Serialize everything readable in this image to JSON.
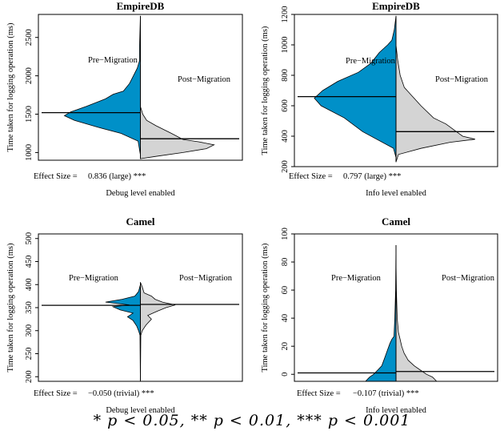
{
  "colors": {
    "pre": "#0090c8",
    "post": "#d4d4d4",
    "outline": "#000000"
  },
  "footnote": "* p < 0.05, ** p < 0.01, *** p < 0.001",
  "chart_data": [
    {
      "type": "bean",
      "title": "EmpireDB",
      "ylabel": "Time taken for logging operation (ms)",
      "xlabel": "Debug level enabled",
      "effect_label": "Effect Size =",
      "effect_value": "0.836 (large) ***",
      "series": [
        {
          "name": "Pre−Migration",
          "median": 1520,
          "density": [
            [
              970,
              0
            ],
            [
              1150,
              0.03
            ],
            [
              1250,
              0.25
            ],
            [
              1330,
              0.55
            ],
            [
              1420,
              0.85
            ],
            [
              1480,
              0.98
            ],
            [
              1530,
              0.9
            ],
            [
              1600,
              0.7
            ],
            [
              1700,
              0.45
            ],
            [
              1760,
              0.35
            ],
            [
              1800,
              0.22
            ],
            [
              1900,
              0.14
            ],
            [
              2000,
              0.09
            ],
            [
              2100,
              0.04
            ],
            [
              2200,
              0.01
            ],
            [
              2400,
              0.01
            ],
            [
              2780,
              0
            ]
          ]
        },
        {
          "name": "Post−Migration",
          "median": 1180,
          "density": [
            [
              920,
              0
            ],
            [
              950,
              0.2
            ],
            [
              1000,
              0.55
            ],
            [
              1050,
              0.85
            ],
            [
              1100,
              0.95
            ],
            [
              1140,
              0.75
            ],
            [
              1170,
              0.55
            ],
            [
              1250,
              0.4
            ],
            [
              1350,
              0.2
            ],
            [
              1420,
              0.08
            ],
            [
              1500,
              0.03
            ],
            [
              1600,
              0
            ]
          ]
        }
      ],
      "ylim": [
        900,
        2800
      ],
      "yticks": [
        1000,
        1500,
        2000,
        2500
      ]
    },
    {
      "type": "bean",
      "title": "EmpireDB",
      "ylabel": "Time taken for logging operation (ms)",
      "xlabel": "Info level enabled",
      "effect_label": "Effect Size =",
      "effect_value": "0.797 (large) ***",
      "series": [
        {
          "name": "Pre−Migration",
          "median": 660,
          "density": [
            [
              260,
              0
            ],
            [
              320,
              0.03
            ],
            [
              430,
              0.4
            ],
            [
              520,
              0.62
            ],
            [
              600,
              0.9
            ],
            [
              650,
              0.98
            ],
            [
              700,
              0.88
            ],
            [
              760,
              0.7
            ],
            [
              820,
              0.45
            ],
            [
              880,
              0.3
            ],
            [
              950,
              0.2
            ],
            [
              1000,
              0.1
            ],
            [
              1030,
              0.05
            ],
            [
              1100,
              0.02
            ],
            [
              1190,
              0
            ]
          ]
        },
        {
          "name": "Post−Migration",
          "median": 430,
          "density": [
            [
              230,
              0
            ],
            [
              280,
              0.03
            ],
            [
              320,
              0.3
            ],
            [
              360,
              0.65
            ],
            [
              380,
              0.95
            ],
            [
              400,
              0.8
            ],
            [
              440,
              0.7
            ],
            [
              480,
              0.6
            ],
            [
              520,
              0.45
            ],
            [
              600,
              0.3
            ],
            [
              660,
              0.2
            ],
            [
              720,
              0.1
            ],
            [
              800,
              0.05
            ],
            [
              900,
              0.02
            ],
            [
              1000,
              0
            ]
          ]
        }
      ],
      "ylim": [
        200,
        1200
      ],
      "yticks": [
        200,
        400,
        600,
        800,
        1000,
        1200
      ]
    },
    {
      "type": "bean",
      "title": "Camel",
      "ylabel": "Time taken for logging operation (ms)",
      "xlabel": "Debug level enabled",
      "effect_label": "Effect Size =",
      "effect_value": "−0.050 (trivial) ***",
      "series": [
        {
          "name": "Pre−Migration",
          "median": 355,
          "density": [
            [
              185,
              0
            ],
            [
              290,
              0.01
            ],
            [
              300,
              0.05
            ],
            [
              310,
              0.1
            ],
            [
              322,
              0.2
            ],
            [
              330,
              0.35
            ],
            [
              338,
              0.2
            ],
            [
              345,
              0.55
            ],
            [
              352,
              0.75
            ],
            [
              356,
              0.3
            ],
            [
              362,
              0.95
            ],
            [
              368,
              0.5
            ],
            [
              375,
              0.15
            ],
            [
              385,
              0.05
            ],
            [
              400,
              0
            ]
          ]
        },
        {
          "name": "Post−Migration",
          "median": 357,
          "density": [
            [
              185,
              0
            ],
            [
              290,
              0.01
            ],
            [
              300,
              0.05
            ],
            [
              312,
              0.15
            ],
            [
              325,
              0.3
            ],
            [
              333,
              0.2
            ],
            [
              342,
              0.45
            ],
            [
              350,
              0.7
            ],
            [
              356,
              0.95
            ],
            [
              362,
              0.6
            ],
            [
              368,
              0.4
            ],
            [
              375,
              0.3
            ],
            [
              382,
              0.1
            ],
            [
              395,
              0.05
            ],
            [
              405,
              0
            ]
          ]
        }
      ],
      "ylim": [
        190,
        510
      ],
      "yticks": [
        200,
        250,
        300,
        350,
        400,
        450,
        500
      ]
    },
    {
      "type": "bean",
      "title": "Camel",
      "ylabel": "Time taken for logging operation (ms)",
      "xlabel": "Info level enabled",
      "effect_label": "Effect Size =",
      "effect_value": "−0.107 (trivial) ***",
      "series": [
        {
          "name": "Pre−Migration",
          "median": 1,
          "density": [
            [
              -5,
              0.75
            ],
            [
              -2,
              0.65
            ],
            [
              0,
              0.55
            ],
            [
              3,
              0.45
            ],
            [
              6,
              0.35
            ],
            [
              10,
              0.3
            ],
            [
              14,
              0.25
            ],
            [
              18,
              0.2
            ],
            [
              22,
              0.15
            ],
            [
              25,
              0.1
            ],
            [
              27,
              0.05
            ],
            [
              40,
              0.03
            ],
            [
              60,
              0.01
            ],
            [
              92,
              0
            ]
          ]
        },
        {
          "name": "Post−Migration",
          "median": 2,
          "density": [
            [
              -5,
              1.0
            ],
            [
              -2,
              0.9
            ],
            [
              0,
              0.75
            ],
            [
              3,
              0.6
            ],
            [
              6,
              0.45
            ],
            [
              10,
              0.3
            ],
            [
              15,
              0.2
            ],
            [
              20,
              0.14
            ],
            [
              25,
              0.1
            ],
            [
              30,
              0.06
            ],
            [
              40,
              0.03
            ],
            [
              60,
              0.01
            ],
            [
              80,
              0
            ]
          ]
        }
      ],
      "ylim": [
        -5,
        100
      ],
      "yticks": [
        0,
        20,
        40,
        60,
        80,
        100
      ]
    }
  ]
}
